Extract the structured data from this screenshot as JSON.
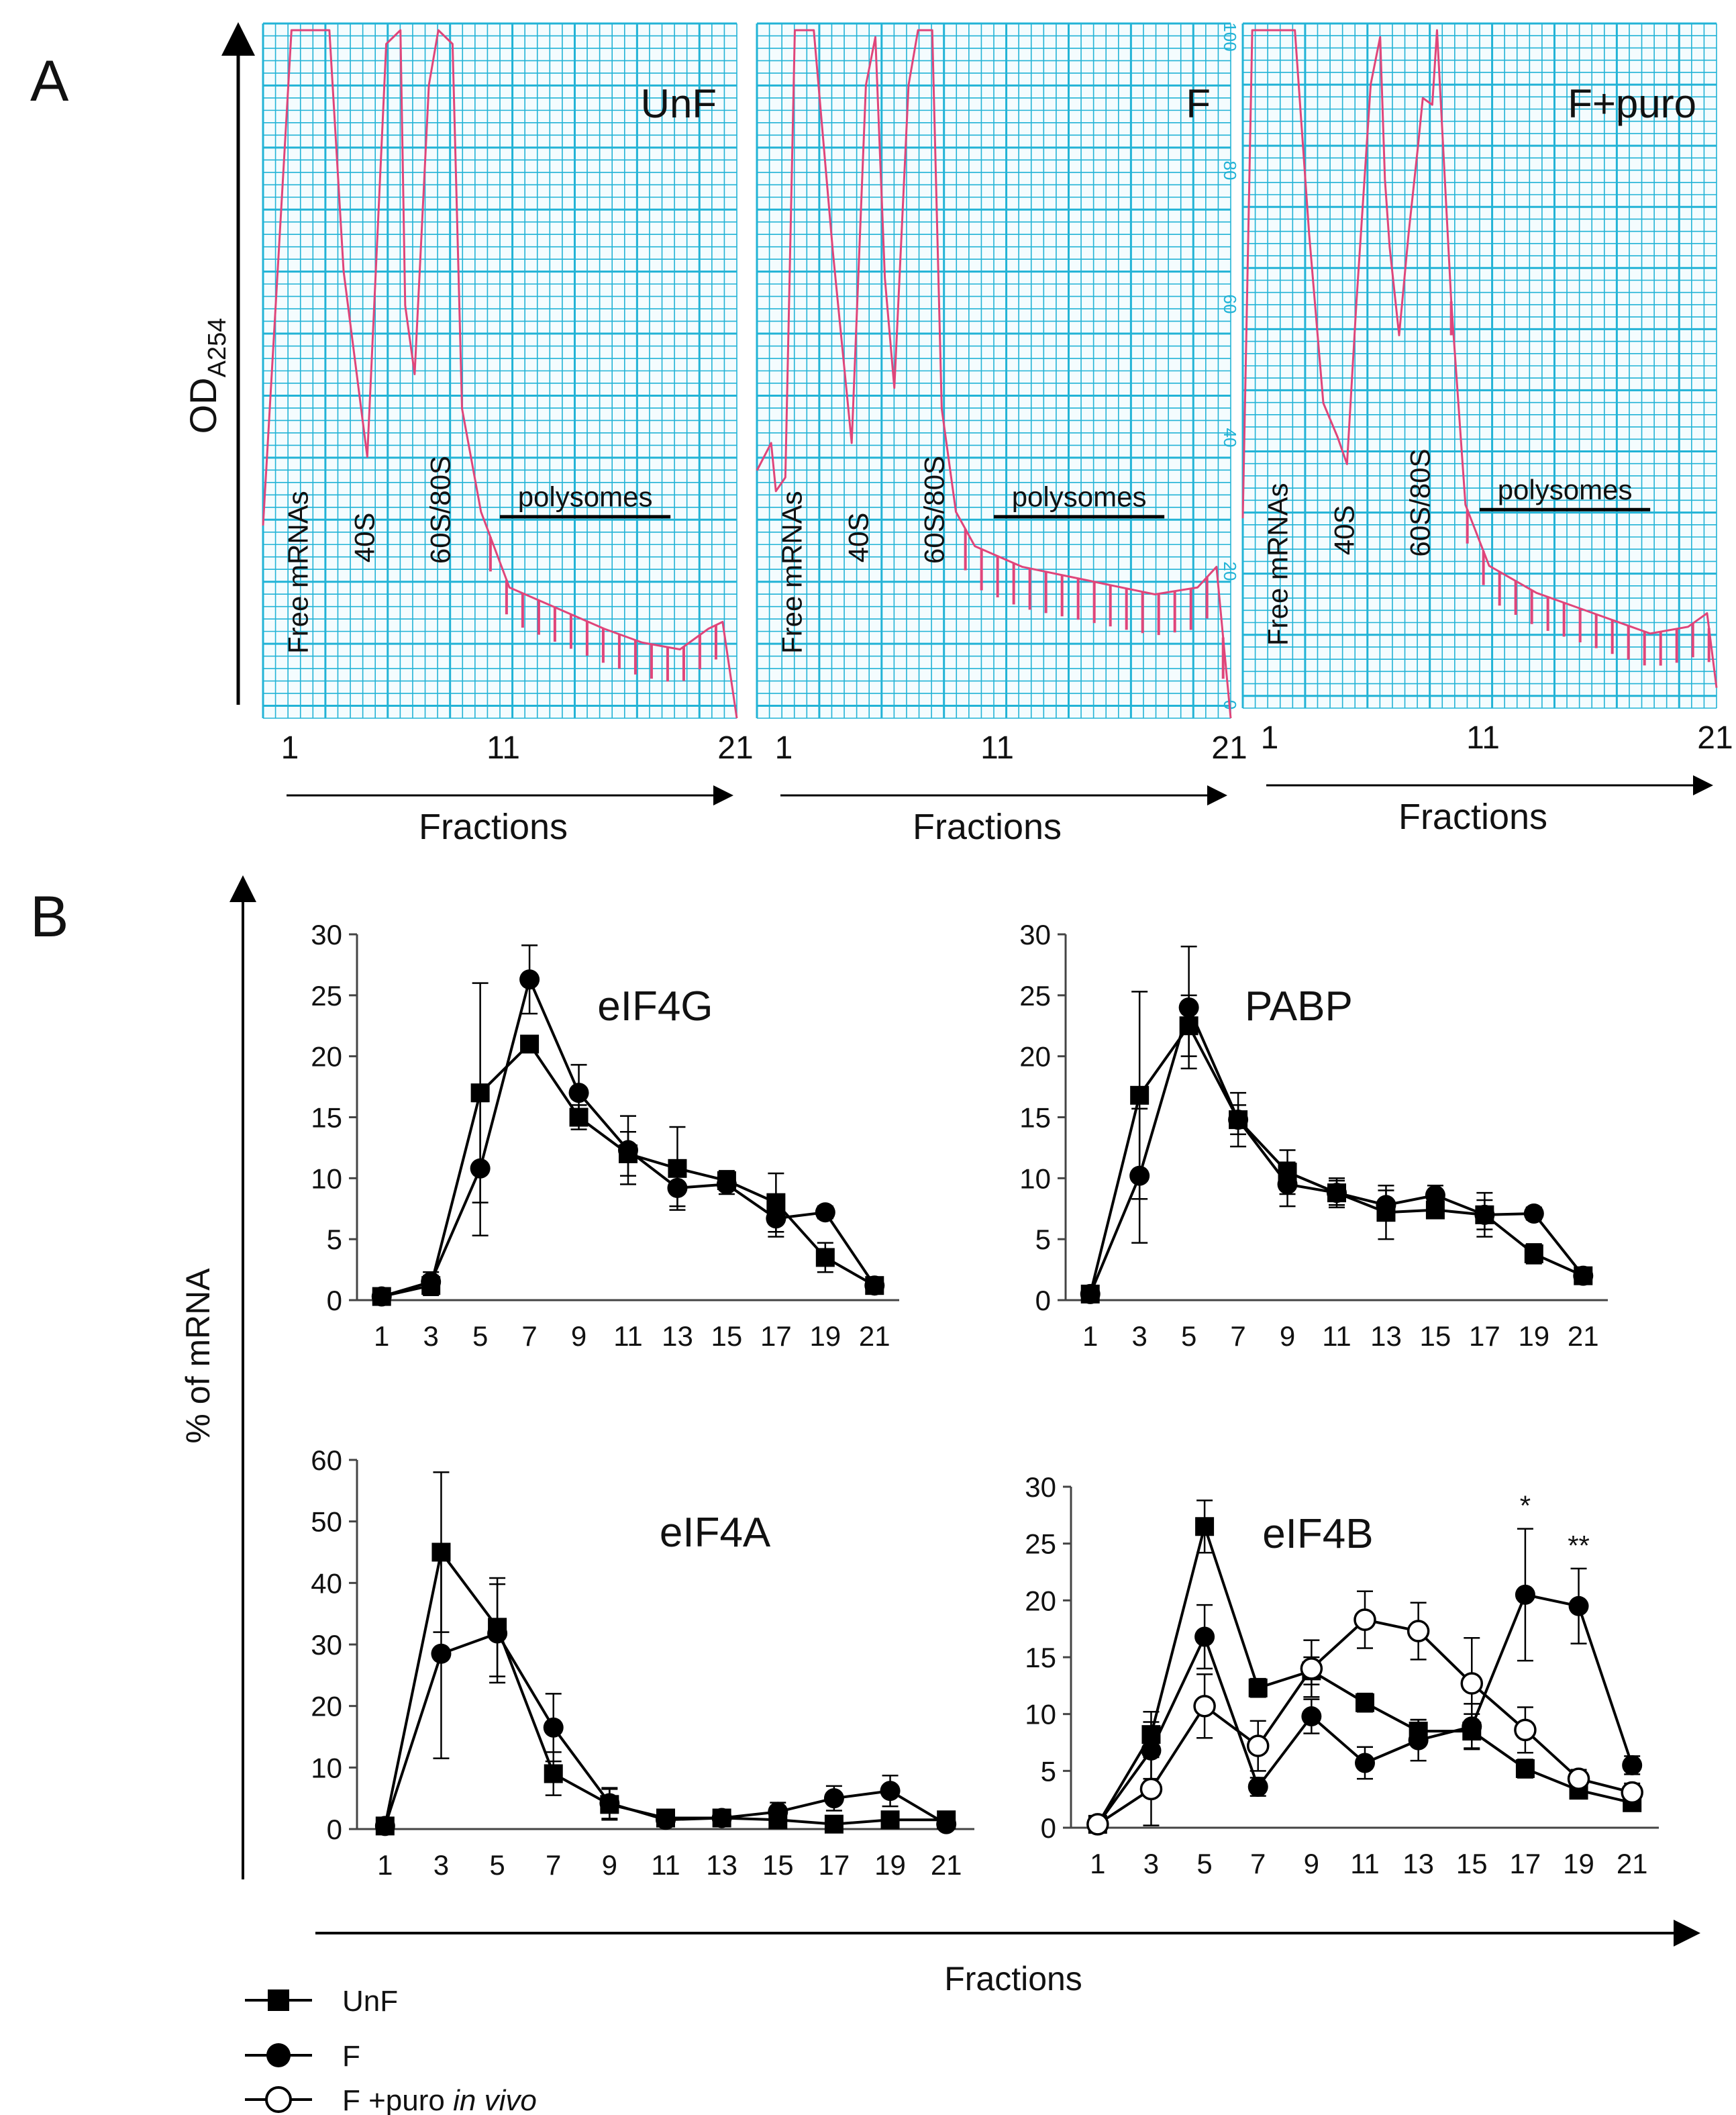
{
  "panel_a": {
    "label": "A",
    "y_axis_label": "OD",
    "y_axis_subscript": "A254",
    "x_axis_label": "Fractions",
    "x_ticks": [
      "1",
      "11",
      "21"
    ],
    "scale_ticks": [
      "100",
      "80",
      "60",
      "40",
      "20",
      "0"
    ],
    "peak_labels": [
      "Free mRNAs",
      "40S",
      "60S/80S"
    ],
    "polysome_label": "polysomes",
    "colors": {
      "grid": "#22b3d6",
      "trace": "#e0457a",
      "paper": "#f4fcfe"
    },
    "profiles": [
      {
        "name": "UnF",
        "trace": [
          [
            0.0,
            0.28
          ],
          [
            0.06,
            1.0
          ],
          [
            0.14,
            1.0
          ],
          [
            0.17,
            0.65
          ],
          [
            0.22,
            0.38
          ],
          [
            0.26,
            0.98
          ],
          [
            0.29,
            1.0
          ],
          [
            0.3,
            0.6
          ],
          [
            0.32,
            0.5
          ],
          [
            0.35,
            0.92
          ],
          [
            0.37,
            1.0
          ],
          [
            0.4,
            0.98
          ],
          [
            0.42,
            0.45
          ],
          [
            0.46,
            0.3
          ],
          [
            0.52,
            0.19
          ],
          [
            0.62,
            0.16
          ],
          [
            0.72,
            0.13
          ],
          [
            0.8,
            0.11
          ],
          [
            0.88,
            0.1
          ],
          [
            0.94,
            0.13
          ],
          [
            0.97,
            0.14
          ],
          [
            1.0,
            0.0
          ]
        ],
        "ticks_from": 0.48,
        "tick_depth": 0.05
      },
      {
        "name": "F",
        "trace": [
          [
            0.0,
            0.36
          ],
          [
            0.03,
            0.4
          ],
          [
            0.04,
            0.33
          ],
          [
            0.06,
            0.35
          ],
          [
            0.08,
            1.0
          ],
          [
            0.12,
            1.0
          ],
          [
            0.16,
            0.68
          ],
          [
            0.2,
            0.4
          ],
          [
            0.23,
            0.92
          ],
          [
            0.25,
            0.99
          ],
          [
            0.27,
            0.64
          ],
          [
            0.29,
            0.48
          ],
          [
            0.32,
            0.92
          ],
          [
            0.34,
            1.0
          ],
          [
            0.37,
            1.0
          ],
          [
            0.39,
            0.45
          ],
          [
            0.42,
            0.3
          ],
          [
            0.46,
            0.25
          ],
          [
            0.56,
            0.22
          ],
          [
            0.7,
            0.2
          ],
          [
            0.84,
            0.18
          ],
          [
            0.93,
            0.19
          ],
          [
            0.97,
            0.22
          ],
          [
            1.0,
            0.0
          ]
        ],
        "ticks_from": 0.44,
        "tick_depth": 0.06
      },
      {
        "name": "F+puro",
        "trace": [
          [
            0.0,
            0.28
          ],
          [
            0.02,
            1.0
          ],
          [
            0.11,
            1.0
          ],
          [
            0.14,
            0.7
          ],
          [
            0.17,
            0.45
          ],
          [
            0.2,
            0.4
          ],
          [
            0.22,
            0.36
          ],
          [
            0.24,
            0.6
          ],
          [
            0.27,
            0.92
          ],
          [
            0.29,
            0.99
          ],
          [
            0.3,
            0.78
          ],
          [
            0.31,
            0.68
          ],
          [
            0.33,
            0.55
          ],
          [
            0.35,
            0.7
          ],
          [
            0.37,
            0.83
          ],
          [
            0.38,
            0.9
          ],
          [
            0.4,
            0.89
          ],
          [
            0.41,
            1.0
          ],
          [
            0.44,
            0.6
          ],
          [
            0.47,
            0.3
          ],
          [
            0.52,
            0.21
          ],
          [
            0.62,
            0.17
          ],
          [
            0.74,
            0.14
          ],
          [
            0.86,
            0.11
          ],
          [
            0.94,
            0.12
          ],
          [
            0.98,
            0.14
          ],
          [
            1.0,
            0.03
          ]
        ],
        "ticks_from": 0.44,
        "tick_depth": 0.05
      }
    ]
  },
  "panel_b": {
    "label": "B"
  },
  "legend": {
    "UnF": "UnF",
    "F": "F",
    "F_puro_prefix": "F +puro ",
    "F_puro_suffix": "in vivo"
  },
  "chart_data": [
    {
      "type": "line",
      "title": "eIF4G",
      "xlabel": "Fractions",
      "ylabel": "% of mRNA",
      "categories": [
        "1",
        "3",
        "5",
        "7",
        "9",
        "11",
        "13",
        "15",
        "17",
        "19",
        "21"
      ],
      "ylim": [
        0,
        30
      ],
      "yticks": [
        0,
        5,
        10,
        15,
        20,
        25,
        30
      ],
      "series": [
        {
          "name": "UnF",
          "marker": "square",
          "values": [
            0.3,
            1.2,
            17.0,
            21.0,
            15.0,
            12.0,
            10.8,
            9.8,
            8.0,
            3.5,
            1.2
          ],
          "errors": [
            0.3,
            0.8,
            9.0,
            0.6,
            1.0,
            1.8,
            3.4,
            0.8,
            2.4,
            1.2,
            0.4
          ]
        },
        {
          "name": "F",
          "marker": "circle",
          "values": [
            0.3,
            1.5,
            10.8,
            26.3,
            17.0,
            12.3,
            9.2,
            9.5,
            6.7,
            7.2,
            1.2
          ],
          "errors": [
            0.3,
            0.8,
            5.5,
            2.8,
            2.3,
            2.8,
            1.5,
            0.8,
            1.5,
            0.5,
            0.4
          ]
        }
      ]
    },
    {
      "type": "line",
      "title": "PABP",
      "xlabel": "Fractions",
      "ylabel": "% of mRNA",
      "categories": [
        "1",
        "3",
        "5",
        "7",
        "9",
        "11",
        "13",
        "15",
        "17",
        "19",
        "21"
      ],
      "ylim": [
        0,
        30
      ],
      "yticks": [
        0,
        5,
        10,
        15,
        20,
        25,
        30
      ],
      "series": [
        {
          "name": "UnF",
          "marker": "square",
          "values": [
            0.5,
            16.8,
            22.5,
            14.8,
            10.5,
            8.8,
            7.2,
            7.4,
            7.0,
            3.8,
            2.0
          ],
          "errors": [
            0.4,
            8.5,
            2.5,
            1.2,
            1.8,
            1.2,
            2.2,
            0.7,
            1.2,
            0.8,
            0.5
          ]
        },
        {
          "name": "F",
          "marker": "circle",
          "values": [
            0.5,
            10.2,
            24.0,
            14.8,
            9.5,
            8.8,
            7.8,
            8.6,
            7.0,
            7.1,
            2.0
          ],
          "errors": [
            0.4,
            5.5,
            5.0,
            2.2,
            1.8,
            1.0,
            1.2,
            0.8,
            1.8,
            0.5,
            0.5
          ]
        }
      ]
    },
    {
      "type": "line",
      "title": "eIF4A",
      "xlabel": "Fractions",
      "ylabel": "% of mRNA",
      "categories": [
        "1",
        "3",
        "5",
        "7",
        "9",
        "11",
        "13",
        "15",
        "17",
        "19",
        "21"
      ],
      "ylim": [
        0,
        60
      ],
      "yticks": [
        0,
        10,
        20,
        30,
        40,
        50,
        60
      ],
      "series": [
        {
          "name": "UnF",
          "marker": "square",
          "values": [
            0.5,
            45.0,
            32.8,
            9.0,
            4.0,
            1.8,
            1.8,
            1.5,
            0.8,
            1.5,
            1.5
          ],
          "errors": [
            0.4,
            13.0,
            8.0,
            3.5,
            2.5,
            1.0,
            0.8,
            0.8,
            0.5,
            0.8,
            0.6
          ]
        },
        {
          "name": "F",
          "marker": "circle",
          "values": [
            0.5,
            28.5,
            31.8,
            16.5,
            4.2,
            1.5,
            1.8,
            2.8,
            5.0,
            6.2,
            0.8
          ],
          "errors": [
            0.4,
            17.0,
            8.0,
            5.5,
            2.5,
            1.0,
            1.0,
            1.5,
            2.0,
            2.5,
            0.6
          ]
        }
      ]
    },
    {
      "type": "line",
      "title": "eIF4B",
      "xlabel": "Fractions",
      "ylabel": "% of mRNA",
      "categories": [
        "1",
        "3",
        "5",
        "7",
        "9",
        "11",
        "13",
        "15",
        "17",
        "19",
        "21"
      ],
      "ylim": [
        0,
        30
      ],
      "yticks": [
        0,
        5,
        10,
        15,
        20,
        25,
        30
      ],
      "significance": [
        {
          "x": "17",
          "mark": "*"
        },
        {
          "x": "19",
          "mark": "**"
        }
      ],
      "series": [
        {
          "name": "UnF",
          "marker": "square",
          "values": [
            0.3,
            8.2,
            26.5,
            12.3,
            13.8,
            11.0,
            8.5,
            8.5,
            5.2,
            3.3,
            2.2
          ],
          "errors": [
            0.3,
            2.0,
            2.3,
            0.8,
            1.2,
            0.8,
            1.0,
            1.5,
            0.8,
            0.5,
            0.4
          ]
        },
        {
          "name": "F",
          "marker": "circle",
          "values": [
            0.3,
            6.8,
            16.8,
            3.6,
            9.8,
            5.7,
            7.7,
            8.9,
            20.5,
            19.5,
            5.5
          ],
          "errors": [
            0.3,
            2.5,
            2.8,
            0.8,
            1.5,
            1.4,
            1.8,
            2.0,
            5.8,
            3.3,
            0.8
          ]
        },
        {
          "name": "F +puro in vivo",
          "marker": "open-circle",
          "values": [
            0.3,
            3.4,
            10.7,
            7.2,
            14.0,
            18.3,
            17.3,
            12.7,
            8.6,
            4.3,
            3.1
          ],
          "errors": [
            0.3,
            3.2,
            2.8,
            2.2,
            2.5,
            2.5,
            2.5,
            4.0,
            2.0,
            0.8,
            0.8
          ]
        }
      ]
    }
  ]
}
